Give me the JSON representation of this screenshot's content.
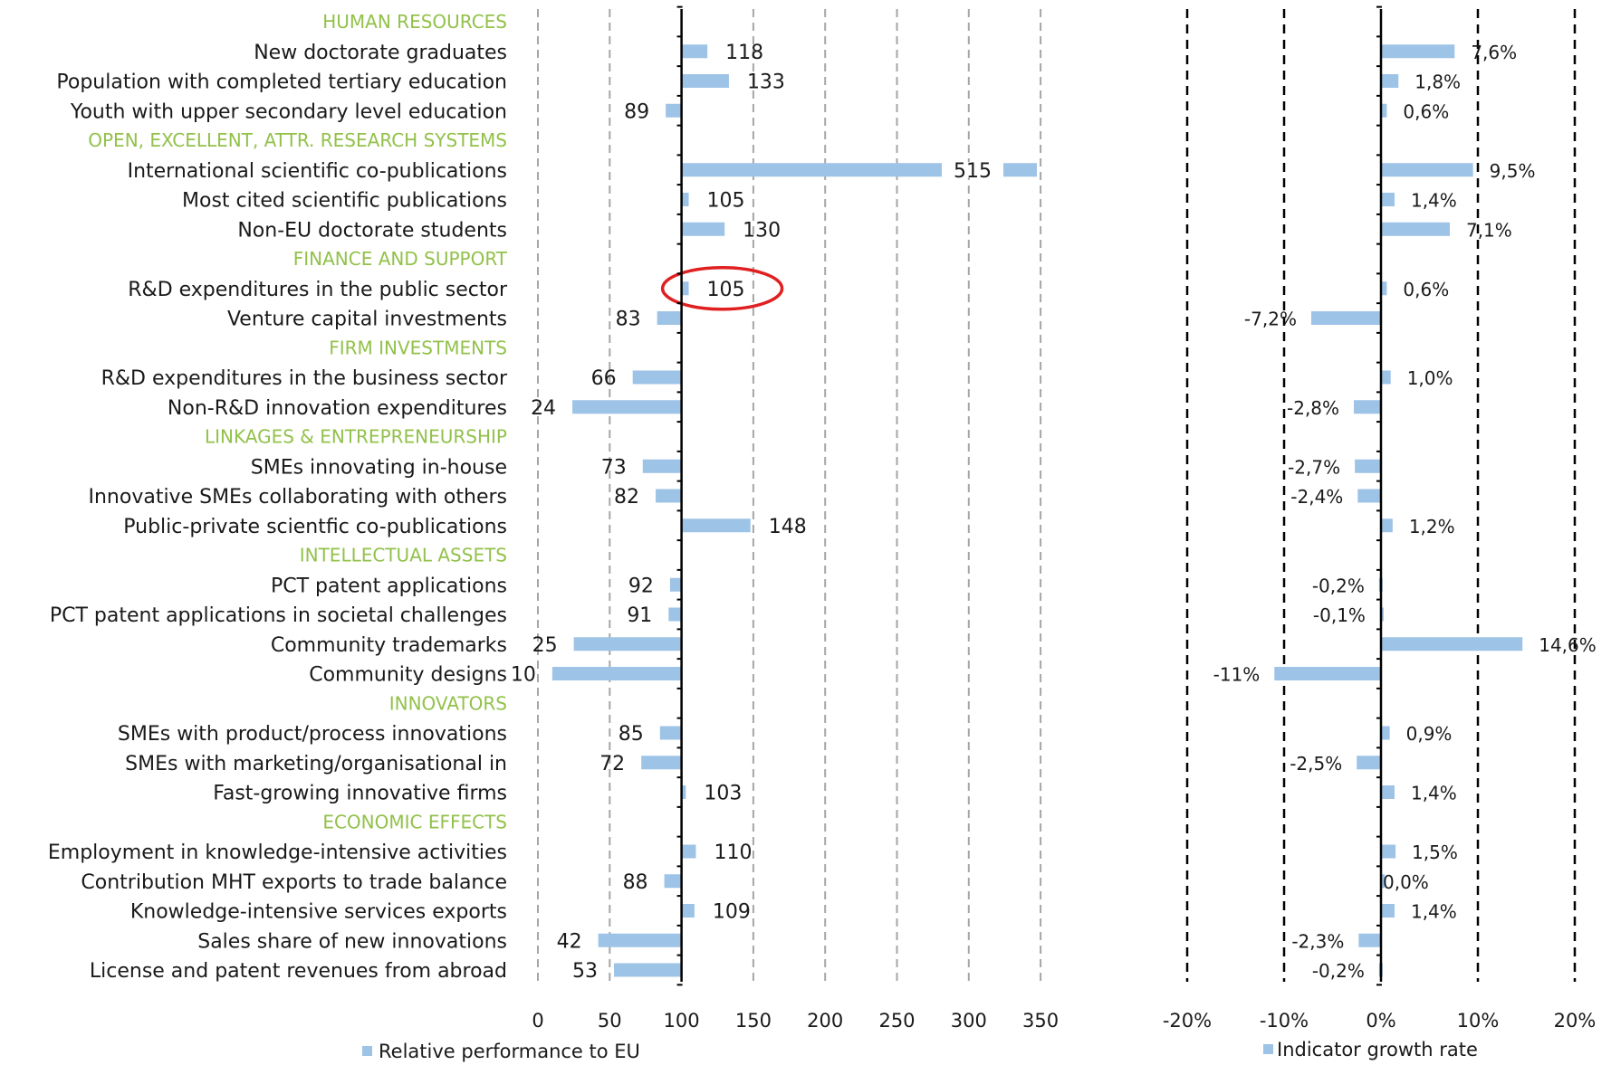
{
  "chart_data": {
    "type": "bar",
    "orientation": "horizontal",
    "layout": "two side-by-side panels sharing row labels",
    "rows": [
      {
        "label": "HUMAN RESOURCES",
        "is_section": true
      },
      {
        "label": "New doctorate graduates",
        "perf": 118,
        "perf_label": "118",
        "growth": 7.6,
        "growth_label": "7,6%"
      },
      {
        "label": "Population with completed tertiary education",
        "perf": 133,
        "perf_label": "133",
        "growth": 1.8,
        "growth_label": "1,8%"
      },
      {
        "label": "Youth with upper secondary level education",
        "perf": 89,
        "perf_label": "89",
        "growth": 0.6,
        "growth_label": "0,6%"
      },
      {
        "label": "OPEN, EXCELLENT, ATTR. RESEARCH SYSTEMS",
        "is_section": true
      },
      {
        "label": "International scientific co-publications",
        "perf": 515,
        "perf_label": "515",
        "growth": 9.5,
        "growth_label": "9,5%",
        "perf_axis_break": true
      },
      {
        "label": "Most cited scientific publications",
        "perf": 105,
        "perf_label": "105",
        "growth": 1.4,
        "growth_label": "1,4%"
      },
      {
        "label": "Non-EU doctorate students",
        "perf": 130,
        "perf_label": "130",
        "growth": 7.1,
        "growth_label": "7,1%"
      },
      {
        "label": "FINANCE AND SUPPORT",
        "is_section": true
      },
      {
        "label": "R&D expenditures in the public sector",
        "perf": 105,
        "perf_label": "105",
        "growth": 0.6,
        "growth_label": "0,6%",
        "circled": true
      },
      {
        "label": "Venture capital investments",
        "perf": 83,
        "perf_label": "83",
        "growth": -7.2,
        "growth_label": "-7,2%"
      },
      {
        "label": "FIRM INVESTMENTS",
        "is_section": true
      },
      {
        "label": "R&D expenditures in the business sector",
        "perf": 66,
        "perf_label": "66",
        "growth": 1.0,
        "growth_label": "1,0%"
      },
      {
        "label": "Non-R&D innovation expenditures",
        "perf": 24,
        "perf_label": "24",
        "growth": -2.8,
        "growth_label": "-2,8%"
      },
      {
        "label": "LINKAGES & ENTREPRENEURSHIP",
        "is_section": true
      },
      {
        "label": "SMEs innovating in-house",
        "perf": 73,
        "perf_label": "73",
        "growth": -2.7,
        "growth_label": "-2,7%"
      },
      {
        "label": "Innovative SMEs collaborating with others",
        "perf": 82,
        "perf_label": "82",
        "growth": -2.4,
        "growth_label": "-2,4%"
      },
      {
        "label": "Public-private scientfic co-publications",
        "perf": 148,
        "perf_label": "148",
        "growth": 1.2,
        "growth_label": "1,2%"
      },
      {
        "label": "INTELLECTUAL ASSETS",
        "is_section": true
      },
      {
        "label": "PCT patent applications",
        "perf": 92,
        "perf_label": "92",
        "growth": -0.2,
        "growth_label": "-0,2%"
      },
      {
        "label": "PCT patent applications in societal challenges",
        "perf": 91,
        "perf_label": "91",
        "growth": -0.1,
        "growth_label": "-0,1%"
      },
      {
        "label": "Community trademarks",
        "perf": 25,
        "perf_label": "25",
        "growth": 14.6,
        "growth_label": "14,6%"
      },
      {
        "label": "Community designs",
        "perf": 10,
        "perf_label": "10",
        "growth": -11,
        "growth_label": "-11%"
      },
      {
        "label": "INNOVATORS",
        "is_section": true
      },
      {
        "label": "SMEs with product/process innovations",
        "perf": 85,
        "perf_label": "85",
        "growth": 0.9,
        "growth_label": "0,9%"
      },
      {
        "label": "SMEs with marketing/organisational in",
        "perf": 72,
        "perf_label": "72",
        "growth": -2.5,
        "growth_label": "-2,5%"
      },
      {
        "label": "Fast-growing innovative firms",
        "perf": 103,
        "perf_label": "103",
        "growth": 1.4,
        "growth_label": "1,4%"
      },
      {
        "label": "ECONOMIC EFFECTS",
        "is_section": true
      },
      {
        "label": "Employment in knowledge-intensive activities",
        "perf": 110,
        "perf_label": "110",
        "growth": 1.5,
        "growth_label": "1,5%"
      },
      {
        "label": "Contribution MHT exports to trade balance",
        "perf": 88,
        "perf_label": "88",
        "growth": 0.0,
        "growth_label": "0,0%"
      },
      {
        "label": "Knowledge-intensive services exports",
        "perf": 109,
        "perf_label": "109",
        "growth": 1.4,
        "growth_label": "1,4%"
      },
      {
        "label": "Sales share of new innovations",
        "perf": 42,
        "perf_label": "42",
        "growth": -2.3,
        "growth_label": "-2,3%"
      },
      {
        "label": "License and patent revenues from abroad",
        "perf": 53,
        "perf_label": "53",
        "growth": -0.2,
        "growth_label": "-0,2%"
      }
    ],
    "left_panel": {
      "legend": "Relative performance to EU",
      "baseline": 100,
      "xlim": [
        0,
        350
      ],
      "ticks": [
        0,
        50,
        100,
        150,
        200,
        250,
        300,
        350
      ],
      "tick_labels": [
        "0",
        "50",
        "100",
        "150",
        "200",
        "250",
        "300",
        "350"
      ],
      "grid": "dashed vertical",
      "legend_position": "bottom"
    },
    "right_panel": {
      "legend": "Indicator growth rate",
      "baseline": 0,
      "xlim": [
        -20,
        20
      ],
      "ticks": [
        -20,
        -10,
        0,
        10,
        20
      ],
      "tick_labels": [
        "-20%",
        "-10%",
        "0%",
        "10%",
        "20%"
      ],
      "grid": "dashed vertical",
      "legend_position": "bottom"
    },
    "colors": {
      "bar": "#9dc3e6",
      "section_label": "#92c14a",
      "text": "#1a1a1a",
      "grid_left": "#a6a6a6",
      "grid_right": "#000000",
      "highlight": "#e02020"
    }
  }
}
